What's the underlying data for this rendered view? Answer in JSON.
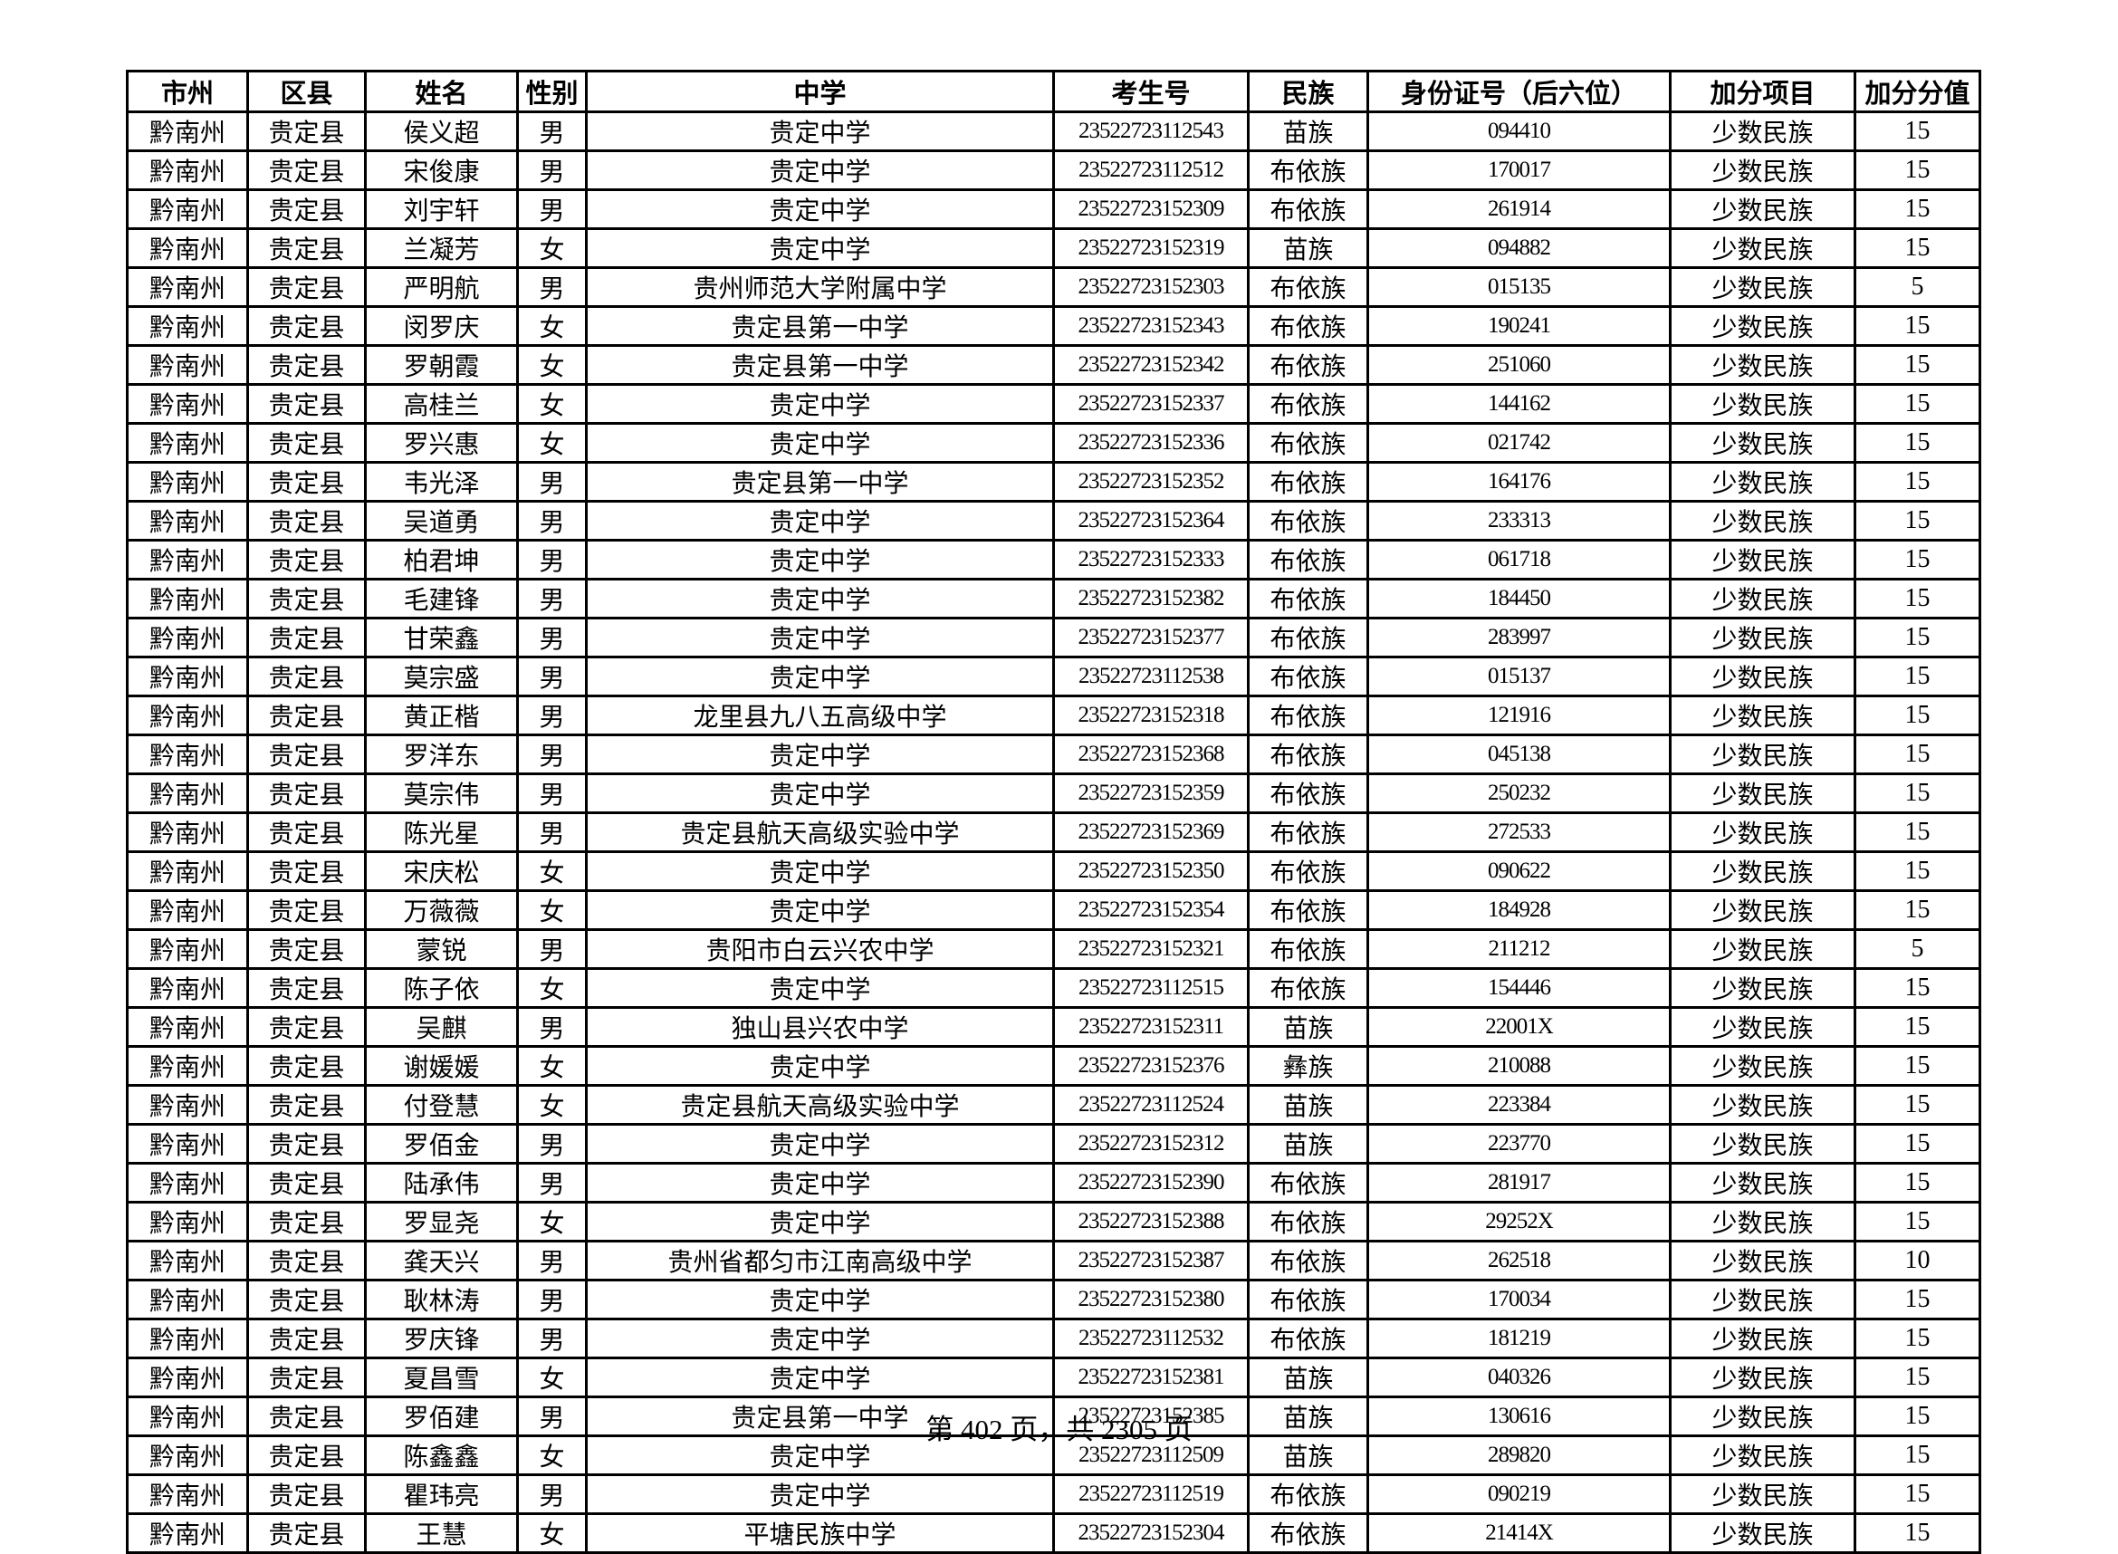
{
  "colors": {
    "text": "#000000",
    "background": "#ffffff",
    "grid_border": "#000000"
  },
  "footer": {
    "text": "第 402 页，共 2305 页",
    "current_page": "402",
    "total_pages": "2305"
  },
  "table": {
    "headers": [
      "市州",
      "区县",
      "姓名",
      "性别",
      "中学",
      "考生号",
      "民族",
      "身份证号（后六位）",
      "加分项目",
      "加分分值"
    ],
    "col_keys": [
      "prefecture",
      "county",
      "name",
      "gender",
      "school",
      "candidate_no",
      "ethnicity",
      "id_last6",
      "bonus_item",
      "bonus_points"
    ],
    "rows": [
      [
        "黔南州",
        "贵定县",
        "侯义超",
        "男",
        "贵定中学",
        "23522723112543",
        "苗族",
        "094410",
        "少数民族",
        "15"
      ],
      [
        "黔南州",
        "贵定县",
        "宋俊康",
        "男",
        "贵定中学",
        "23522723112512",
        "布依族",
        "170017",
        "少数民族",
        "15"
      ],
      [
        "黔南州",
        "贵定县",
        "刘宇轩",
        "男",
        "贵定中学",
        "23522723152309",
        "布依族",
        "261914",
        "少数民族",
        "15"
      ],
      [
        "黔南州",
        "贵定县",
        "兰凝芳",
        "女",
        "贵定中学",
        "23522723152319",
        "苗族",
        "094882",
        "少数民族",
        "15"
      ],
      [
        "黔南州",
        "贵定县",
        "严明航",
        "男",
        "贵州师范大学附属中学",
        "23522723152303",
        "布依族",
        "015135",
        "少数民族",
        "5"
      ],
      [
        "黔南州",
        "贵定县",
        "闵罗庆",
        "女",
        "贵定县第一中学",
        "23522723152343",
        "布依族",
        "190241",
        "少数民族",
        "15"
      ],
      [
        "黔南州",
        "贵定县",
        "罗朝霞",
        "女",
        "贵定县第一中学",
        "23522723152342",
        "布依族",
        "251060",
        "少数民族",
        "15"
      ],
      [
        "黔南州",
        "贵定县",
        "高桂兰",
        "女",
        "贵定中学",
        "23522723152337",
        "布依族",
        "144162",
        "少数民族",
        "15"
      ],
      [
        "黔南州",
        "贵定县",
        "罗兴惠",
        "女",
        "贵定中学",
        "23522723152336",
        "布依族",
        "021742",
        "少数民族",
        "15"
      ],
      [
        "黔南州",
        "贵定县",
        "韦光泽",
        "男",
        "贵定县第一中学",
        "23522723152352",
        "布依族",
        "164176",
        "少数民族",
        "15"
      ],
      [
        "黔南州",
        "贵定县",
        "吴道勇",
        "男",
        "贵定中学",
        "23522723152364",
        "布依族",
        "233313",
        "少数民族",
        "15"
      ],
      [
        "黔南州",
        "贵定县",
        "柏君坤",
        "男",
        "贵定中学",
        "23522723152333",
        "布依族",
        "061718",
        "少数民族",
        "15"
      ],
      [
        "黔南州",
        "贵定县",
        "毛建锋",
        "男",
        "贵定中学",
        "23522723152382",
        "布依族",
        "184450",
        "少数民族",
        "15"
      ],
      [
        "黔南州",
        "贵定县",
        "甘荣鑫",
        "男",
        "贵定中学",
        "23522723152377",
        "布依族",
        "283997",
        "少数民族",
        "15"
      ],
      [
        "黔南州",
        "贵定县",
        "莫宗盛",
        "男",
        "贵定中学",
        "23522723112538",
        "布依族",
        "015137",
        "少数民族",
        "15"
      ],
      [
        "黔南州",
        "贵定县",
        "黄正楷",
        "男",
        "龙里县九八五高级中学",
        "23522723152318",
        "布依族",
        "121916",
        "少数民族",
        "15"
      ],
      [
        "黔南州",
        "贵定县",
        "罗洋东",
        "男",
        "贵定中学",
        "23522723152368",
        "布依族",
        "045138",
        "少数民族",
        "15"
      ],
      [
        "黔南州",
        "贵定县",
        "莫宗伟",
        "男",
        "贵定中学",
        "23522723152359",
        "布依族",
        "250232",
        "少数民族",
        "15"
      ],
      [
        "黔南州",
        "贵定县",
        "陈光星",
        "男",
        "贵定县航天高级实验中学",
        "23522723152369",
        "布依族",
        "272533",
        "少数民族",
        "15"
      ],
      [
        "黔南州",
        "贵定县",
        "宋庆松",
        "女",
        "贵定中学",
        "23522723152350",
        "布依族",
        "090622",
        "少数民族",
        "15"
      ],
      [
        "黔南州",
        "贵定县",
        "万薇薇",
        "女",
        "贵定中学",
        "23522723152354",
        "布依族",
        "184928",
        "少数民族",
        "15"
      ],
      [
        "黔南州",
        "贵定县",
        "蒙锐",
        "男",
        "贵阳市白云兴农中学",
        "23522723152321",
        "布依族",
        "211212",
        "少数民族",
        "5"
      ],
      [
        "黔南州",
        "贵定县",
        "陈子依",
        "女",
        "贵定中学",
        "23522723112515",
        "布依族",
        "154446",
        "少数民族",
        "15"
      ],
      [
        "黔南州",
        "贵定县",
        "吴麒",
        "男",
        "独山县兴农中学",
        "23522723152311",
        "苗族",
        "22001X",
        "少数民族",
        "15"
      ],
      [
        "黔南州",
        "贵定县",
        "谢媛媛",
        "女",
        "贵定中学",
        "23522723152376",
        "彝族",
        "210088",
        "少数民族",
        "15"
      ],
      [
        "黔南州",
        "贵定县",
        "付登慧",
        "女",
        "贵定县航天高级实验中学",
        "23522723112524",
        "苗族",
        "223384",
        "少数民族",
        "15"
      ],
      [
        "黔南州",
        "贵定县",
        "罗佰金",
        "男",
        "贵定中学",
        "23522723152312",
        "苗族",
        "223770",
        "少数民族",
        "15"
      ],
      [
        "黔南州",
        "贵定县",
        "陆承伟",
        "男",
        "贵定中学",
        "23522723152390",
        "布依族",
        "281917",
        "少数民族",
        "15"
      ],
      [
        "黔南州",
        "贵定县",
        "罗显尧",
        "女",
        "贵定中学",
        "23522723152388",
        "布依族",
        "29252X",
        "少数民族",
        "15"
      ],
      [
        "黔南州",
        "贵定县",
        "龚天兴",
        "男",
        "贵州省都匀市江南高级中学",
        "23522723152387",
        "布依族",
        "262518",
        "少数民族",
        "10"
      ],
      [
        "黔南州",
        "贵定县",
        "耿林涛",
        "男",
        "贵定中学",
        "23522723152380",
        "布依族",
        "170034",
        "少数民族",
        "15"
      ],
      [
        "黔南州",
        "贵定县",
        "罗庆锋",
        "男",
        "贵定中学",
        "23522723112532",
        "布依族",
        "181219",
        "少数民族",
        "15"
      ],
      [
        "黔南州",
        "贵定县",
        "夏昌雪",
        "女",
        "贵定中学",
        "23522723152381",
        "苗族",
        "040326",
        "少数民族",
        "15"
      ],
      [
        "黔南州",
        "贵定县",
        "罗佰建",
        "男",
        "贵定县第一中学",
        "23522723152385",
        "苗族",
        "130616",
        "少数民族",
        "15"
      ],
      [
        "黔南州",
        "贵定县",
        "陈鑫鑫",
        "女",
        "贵定中学",
        "23522723112509",
        "苗族",
        "289820",
        "少数民族",
        "15"
      ],
      [
        "黔南州",
        "贵定县",
        "瞿玮亮",
        "男",
        "贵定中学",
        "23522723112519",
        "布依族",
        "090219",
        "少数民族",
        "15"
      ],
      [
        "黔南州",
        "贵定县",
        "王慧",
        "女",
        "平塘民族中学",
        "23522723152304",
        "布依族",
        "21414X",
        "少数民族",
        "15"
      ]
    ]
  }
}
